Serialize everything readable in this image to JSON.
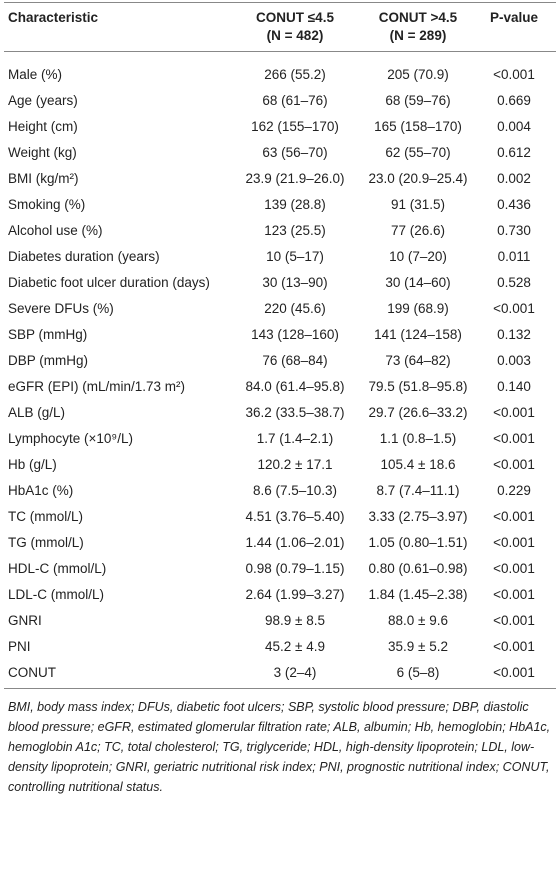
{
  "table": {
    "header": [
      [
        "Characteristic"
      ],
      [
        "CONUT ≤4.5",
        "(N = 482)"
      ],
      [
        "CONUT >4.5",
        "(N = 289)"
      ],
      [
        "P-value"
      ]
    ],
    "rows": [
      [
        "Male (%)",
        "266 (55.2)",
        "205 (70.9)",
        "<0.001"
      ],
      [
        "Age (years)",
        "68 (61–76)",
        "68 (59–76)",
        "0.669"
      ],
      [
        "Height (cm)",
        "162 (155–170)",
        "165 (158–170)",
        "0.004"
      ],
      [
        "Weight (kg)",
        "63 (56–70)",
        "62 (55–70)",
        "0.612"
      ],
      [
        "BMI (kg/m²)",
        "23.9 (21.9–26.0)",
        "23.0 (20.9–25.4)",
        "0.002"
      ],
      [
        "Smoking (%)",
        "139 (28.8)",
        "91 (31.5)",
        "0.436"
      ],
      [
        "Alcohol use (%)",
        "123 (25.5)",
        "77 (26.6)",
        "0.730"
      ],
      [
        "Diabetes duration (years)",
        "10 (5–17)",
        "10 (7–20)",
        "0.011"
      ],
      [
        "Diabetic foot ulcer duration (days)",
        "30 (13–90)",
        "30 (14–60)",
        "0.528"
      ],
      [
        "Severe DFUs (%)",
        "220 (45.6)",
        "199 (68.9)",
        "<0.001"
      ],
      [
        "SBP (mmHg)",
        "143 (128–160)",
        "141 (124–158)",
        "0.132"
      ],
      [
        "DBP (mmHg)",
        "76 (68–84)",
        "73 (64–82)",
        "0.003"
      ],
      [
        "eGFR (EPI) (mL/min/1.73 m²)",
        "84.0 (61.4–95.8)",
        "79.5 (51.8–95.8)",
        "0.140"
      ],
      [
        "ALB (g/L)",
        "36.2 (33.5–38.7)",
        "29.7 (26.6–33.2)",
        "<0.001"
      ],
      [
        "Lymphocyte (×10⁹/L)",
        "1.7 (1.4–2.1)",
        "1.1 (0.8–1.5)",
        "<0.001"
      ],
      [
        "Hb (g/L)",
        "120.2 ± 17.1",
        "105.4 ± 18.6",
        "<0.001"
      ],
      [
        "HbA1c (%)",
        "8.6 (7.5–10.3)",
        "8.7 (7.4–11.1)",
        "0.229"
      ],
      [
        "TC (mmol/L)",
        "4.51 (3.76–5.40)",
        "3.33 (2.75–3.97)",
        "<0.001"
      ],
      [
        "TG (mmol/L)",
        "1.44 (1.06–2.01)",
        "1.05 (0.80–1.51)",
        "<0.001"
      ],
      [
        "HDL-C (mmol/L)",
        "0.98 (0.79–1.15)",
        "0.80 (0.61–0.98)",
        "<0.001"
      ],
      [
        "LDL-C (mmol/L)",
        "2.64 (1.99–3.27)",
        "1.84 (1.45–2.38)",
        "<0.001"
      ],
      [
        "GNRI",
        "98.9 ± 8.5",
        "88.0 ± 9.6",
        "<0.001"
      ],
      [
        "PNI",
        "45.2 ± 4.9",
        "35.9 ± 5.2",
        "<0.001"
      ],
      [
        "CONUT",
        "3 (2–4)",
        "6 (5–8)",
        "<0.001"
      ]
    ],
    "footnote": "BMI, body mass index; DFUs, diabetic foot ulcers; SBP, systolic blood pressure; DBP, diastolic blood pressure; eGFR, estimated glomerular filtration rate; ALB, albumin; Hb, hemoglobin; HbA1c, hemoglobin A1c; TC, total cholesterol; TG, triglyceride; HDL, high-density lipoprotein; LDL, low- density lipoprotein; GNRI, geriatric nutritional risk index; PNI, prognostic nutritional index; CONUT, controlling nutritional status."
  }
}
